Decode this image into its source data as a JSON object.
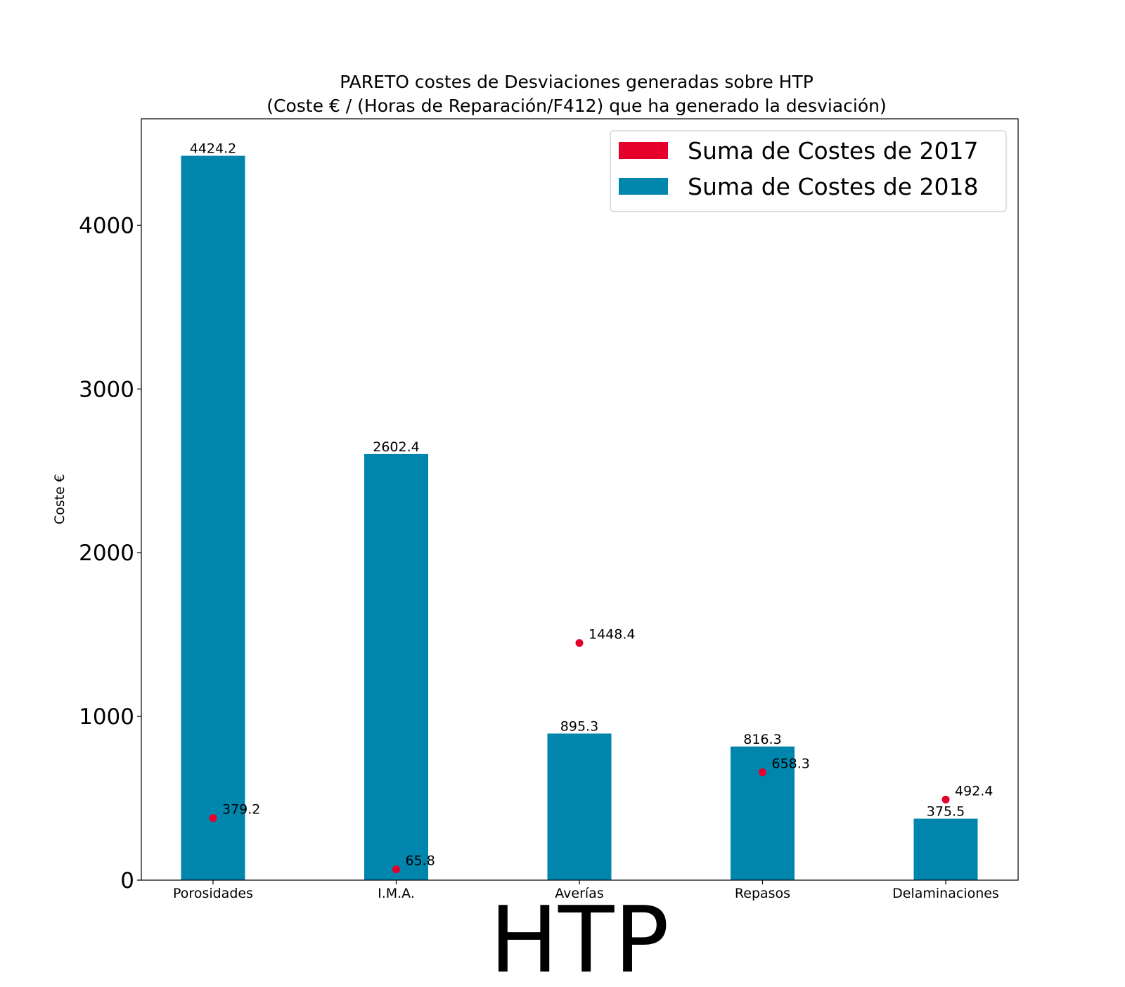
{
  "chart_data": {
    "type": "bar",
    "title": "PARETO costes de Desviaciones  generadas  sobre HTP",
    "subtitle": "(Coste € / (Horas de Reparación/F412) que ha generado la desviación)",
    "xlabel": "HTP",
    "ylabel": "Coste €",
    "categories": [
      "Porosidades",
      "I.M.A.",
      "Averías",
      "Repasos",
      "Delaminaciones"
    ],
    "ylim": [
      0,
      4650
    ],
    "yticks": [
      0,
      1000,
      2000,
      3000,
      4000
    ],
    "grid": false,
    "legend_position": "top-right",
    "series": [
      {
        "name": "Suma de Costes de 2017",
        "mark": "point",
        "color": "#e4002b",
        "values": [
          379.2,
          65.8,
          1448.4,
          658.3,
          492.4
        ],
        "labels": [
          "379.2",
          "65.8",
          "1448.4",
          "658.3",
          "492.4"
        ]
      },
      {
        "name": "Suma de Costes de 2018",
        "mark": "bar",
        "color": "#0086ad",
        "values": [
          4424.2,
          2602.4,
          895.3,
          816.3,
          375.5
        ],
        "labels": [
          "4424.2",
          "2602.4",
          "895.3",
          "816.3",
          "375.5"
        ]
      }
    ]
  }
}
